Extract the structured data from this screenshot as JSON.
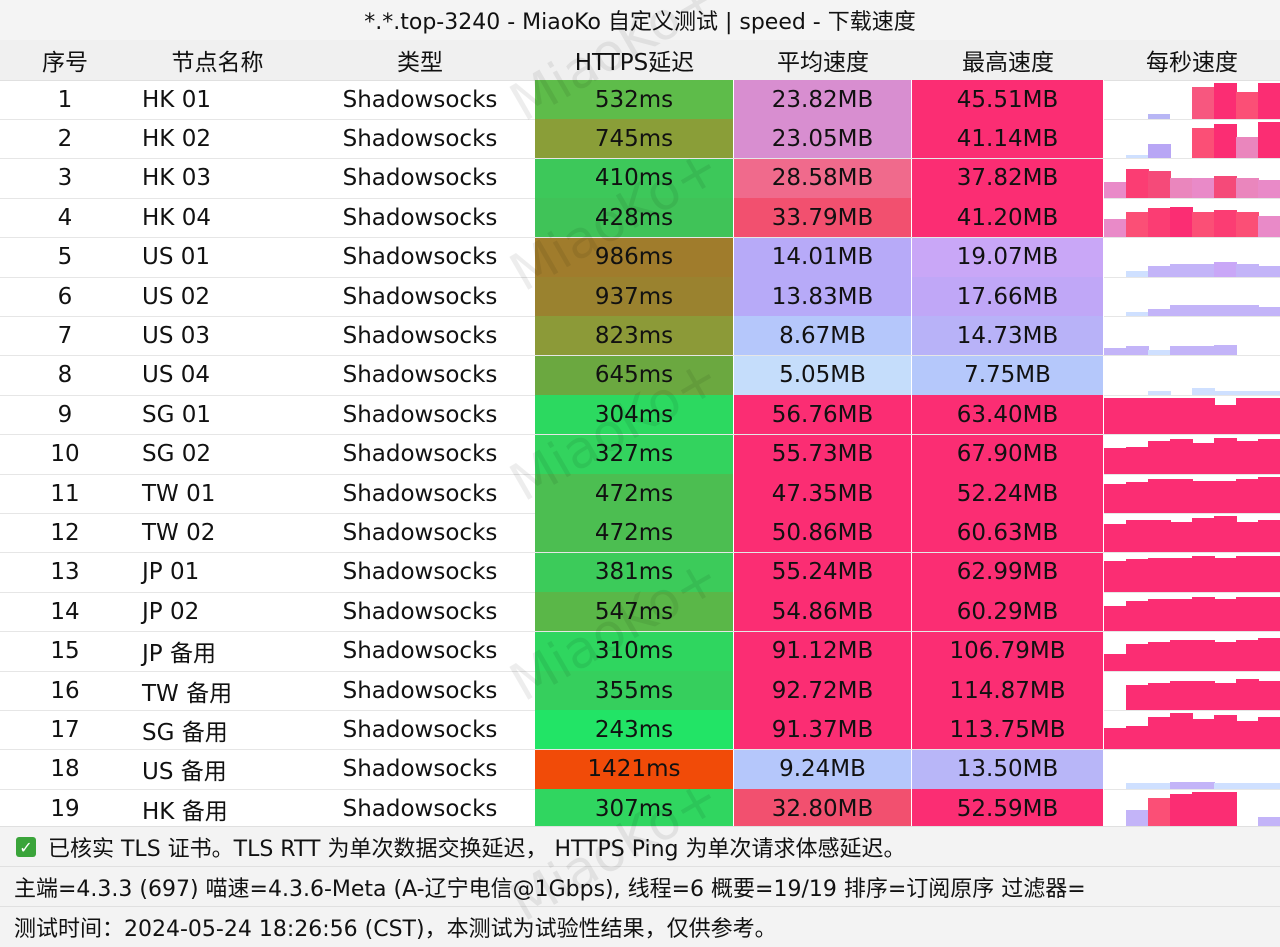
{
  "title": "*.*.top-3240 - MiaoKo 自定义测试 | speed - 下载速度",
  "headers": [
    "序号",
    "节点名称",
    "类型",
    "HTTPS延迟",
    "平均速度",
    "最高速度",
    "每秒速度"
  ],
  "rows": [
    {
      "idx": "1",
      "name": "HK 01",
      "type": "Shadowsocks",
      "delay": "532ms",
      "delay_color": "#5ebc4a",
      "avg": "23.82MB",
      "avg_color": "#d88ed0",
      "max": "45.51MB",
      "max_color": "#fb2d73",
      "spark": [
        0,
        0,
        0.15,
        0.35,
        0.9,
        1.0,
        0.75,
        1.0
      ],
      "spark_colors": [
        "#ffffff",
        "#cfe0ff",
        "#b8b6f5",
        "#ffffff",
        "#f7577f",
        "#fb2d73",
        "#fb4f76",
        "#fb2d73"
      ]
    },
    {
      "idx": "2",
      "name": "HK 02",
      "type": "Shadowsocks",
      "delay": "745ms",
      "delay_color": "#8a9e38",
      "avg": "23.05MB",
      "avg_color": "#d88ed0",
      "max": "41.14MB",
      "max_color": "#fb2d73",
      "spark": [
        0,
        0.1,
        0.4,
        0.0,
        0.85,
        0.95,
        0.6,
        1.0
      ],
      "spark_colors": [
        "#ffffff",
        "#cfe0ff",
        "#b8a6f5",
        "#ffffff",
        "#fb4f76",
        "#fb2d73",
        "#ea86bd",
        "#fb2d73"
      ]
    },
    {
      "idx": "3",
      "name": "HK 03",
      "type": "Shadowsocks",
      "delay": "410ms",
      "delay_color": "#3dc85a",
      "avg": "28.58MB",
      "avg_color": "#f06a8c",
      "max": "37.82MB",
      "max_color": "#fb2d73",
      "spark": [
        0.45,
        0.8,
        0.75,
        0.55,
        0.55,
        0.6,
        0.55,
        0.5
      ],
      "spark_colors": [
        "#e98ac8",
        "#fb3d73",
        "#f54a79",
        "#ea86bd",
        "#e98ac8",
        "#f54a79",
        "#ea86bd",
        "#e98ac8"
      ]
    },
    {
      "idx": "4",
      "name": "HK 04",
      "type": "Shadowsocks",
      "delay": "428ms",
      "delay_color": "#40c358",
      "avg": "33.79MB",
      "avg_color": "#f2506f",
      "max": "41.20MB",
      "max_color": "#fb2d73",
      "spark": [
        0.5,
        0.7,
        0.8,
        0.85,
        0.7,
        0.75,
        0.7,
        0.6
      ],
      "spark_colors": [
        "#e98ac8",
        "#fb4f76",
        "#fb3d73",
        "#fb2d73",
        "#fb4f76",
        "#fb3d73",
        "#fb4f76",
        "#e98ac8"
      ]
    },
    {
      "idx": "5",
      "name": "US 01",
      "type": "Shadowsocks",
      "delay": "986ms",
      "delay_color": "#a07c2c",
      "avg": "14.01MB",
      "avg_color": "#b7aaf8",
      "max": "19.07MB",
      "max_color": "#c9a7f7",
      "spark": [
        0.0,
        0.15,
        0.3,
        0.35,
        0.35,
        0.4,
        0.35,
        0.3
      ],
      "spark_colors": [
        "#ffffff",
        "#cfe0ff",
        "#c3b4f8",
        "#c3b4f8",
        "#c3b4f8",
        "#c9a7f7",
        "#c3b4f8",
        "#c3b4f8"
      ]
    },
    {
      "idx": "6",
      "name": "US 02",
      "type": "Shadowsocks",
      "delay": "937ms",
      "delay_color": "#9a822f",
      "avg": "13.83MB",
      "avg_color": "#b7aaf8",
      "max": "17.66MB",
      "max_color": "#c0a7f7",
      "spark": [
        0.0,
        0.1,
        0.2,
        0.3,
        0.3,
        0.3,
        0.3,
        0.25
      ],
      "spark_colors": [
        "#ffffff",
        "#cfe0ff",
        "#c3b4f8",
        "#c3b4f8",
        "#c3b4f8",
        "#c3b4f8",
        "#c3b4f8",
        "#c3b4f8"
      ]
    },
    {
      "idx": "7",
      "name": "US 03",
      "type": "Shadowsocks",
      "delay": "823ms",
      "delay_color": "#8c9a38",
      "avg": "8.67MB",
      "avg_color": "#b5c7fb",
      "max": "14.73MB",
      "max_color": "#b8b2f8",
      "spark": [
        0.2,
        0.25,
        0.15,
        0.25,
        0.25,
        0.3,
        0.0,
        0.0
      ],
      "spark_colors": [
        "#c3b4f8",
        "#c3b4f8",
        "#cfe0ff",
        "#c3b4f8",
        "#c3b4f8",
        "#c3b4f8",
        "#ffffff",
        "#ffffff"
      ]
    },
    {
      "idx": "8",
      "name": "US 04",
      "type": "Shadowsocks",
      "delay": "645ms",
      "delay_color": "#6ba840",
      "avg": "5.05MB",
      "avg_color": "#c5ddfb",
      "max": "7.75MB",
      "max_color": "#b5c8fb",
      "spark": [
        0.0,
        0.0,
        0.1,
        0.0,
        0.2,
        0.1,
        0.1,
        0.1
      ],
      "spark_colors": [
        "#ffffff",
        "#ffffff",
        "#cfe0ff",
        "#ffffff",
        "#cfe0ff",
        "#cfe0ff",
        "#cfe0ff",
        "#cfe0ff"
      ]
    },
    {
      "idx": "9",
      "name": "SG 01",
      "type": "Shadowsocks",
      "delay": "304ms",
      "delay_color": "#2cd960",
      "avg": "56.76MB",
      "avg_color": "#fb2d73",
      "max": "63.40MB",
      "max_color": "#fb2d73",
      "spark": [
        1.0,
        1.0,
        1.0,
        1.0,
        1.0,
        0.8,
        1.0,
        1.0
      ],
      "spark_colors": [
        "#fb2d73",
        "#fb2d73",
        "#fb2d73",
        "#fb2d73",
        "#fb2d73",
        "#fb2d73",
        "#fb2d73",
        "#fb2d73"
      ]
    },
    {
      "idx": "10",
      "name": "SG 02",
      "type": "Shadowsocks",
      "delay": "327ms",
      "delay_color": "#33d35e",
      "avg": "55.73MB",
      "avg_color": "#fb2d73",
      "max": "67.90MB",
      "max_color": "#fb2d73",
      "spark": [
        0.7,
        0.75,
        0.9,
        0.95,
        0.85,
        1.0,
        0.9,
        0.95
      ],
      "spark_colors": [
        "#fb2d73",
        "#fb2d73",
        "#fb2d73",
        "#fb2d73",
        "#fb2d73",
        "#fb2d73",
        "#fb2d73",
        "#fb2d73"
      ]
    },
    {
      "idx": "11",
      "name": "TW 01",
      "type": "Shadowsocks",
      "delay": "472ms",
      "delay_color": "#4cbe51",
      "avg": "47.35MB",
      "avg_color": "#fb2d73",
      "max": "52.24MB",
      "max_color": "#fb2d73",
      "spark": [
        0.8,
        0.85,
        0.95,
        0.95,
        0.9,
        0.9,
        0.95,
        1.0
      ],
      "spark_colors": [
        "#fb2d73",
        "#fb2d73",
        "#fb2d73",
        "#fb2d73",
        "#fb2d73",
        "#fb2d73",
        "#fb2d73",
        "#fb2d73"
      ]
    },
    {
      "idx": "12",
      "name": "TW 02",
      "type": "Shadowsocks",
      "delay": "472ms",
      "delay_color": "#4cbe51",
      "avg": "50.86MB",
      "avg_color": "#fb2d73",
      "max": "60.63MB",
      "max_color": "#fb2d73",
      "spark": [
        0.8,
        0.9,
        0.9,
        0.85,
        0.95,
        1.0,
        0.85,
        0.9
      ],
      "spark_colors": [
        "#fb2d73",
        "#fb2d73",
        "#fb2d73",
        "#fb2d73",
        "#fb2d73",
        "#fb2d73",
        "#fb2d73",
        "#fb2d73"
      ]
    },
    {
      "idx": "13",
      "name": "JP 01",
      "type": "Shadowsocks",
      "delay": "381ms",
      "delay_color": "#3ccb5a",
      "avg": "55.24MB",
      "avg_color": "#fb2d73",
      "max": "62.99MB",
      "max_color": "#fb2d73",
      "spark": [
        0.85,
        0.9,
        0.95,
        0.95,
        1.0,
        0.95,
        1.0,
        1.0
      ],
      "spark_colors": [
        "#fb2d73",
        "#fb2d73",
        "#fb2d73",
        "#fb2d73",
        "#fb2d73",
        "#fb2d73",
        "#fb2d73",
        "#fb2d73"
      ]
    },
    {
      "idx": "14",
      "name": "JP 02",
      "type": "Shadowsocks",
      "delay": "547ms",
      "delay_color": "#5ab748",
      "avg": "54.86MB",
      "avg_color": "#fb2d73",
      "max": "60.29MB",
      "max_color": "#fb2d73",
      "spark": [
        0.7,
        0.85,
        0.9,
        0.9,
        0.95,
        0.9,
        0.95,
        0.95
      ],
      "spark_colors": [
        "#fb2d73",
        "#fb2d73",
        "#fb2d73",
        "#fb2d73",
        "#fb2d73",
        "#fb2d73",
        "#fb2d73",
        "#fb2d73"
      ]
    },
    {
      "idx": "15",
      "name": "JP 备用",
      "type": "Shadowsocks",
      "delay": "310ms",
      "delay_color": "#2fd65f",
      "avg": "91.12MB",
      "avg_color": "#fb2d73",
      "max": "106.79MB",
      "max_color": "#fb2d73",
      "spark": [
        0.45,
        0.75,
        0.8,
        0.85,
        0.85,
        0.8,
        0.85,
        0.9
      ],
      "spark_colors": [
        "#fb2d73",
        "#fb2d73",
        "#fb2d73",
        "#fb2d73",
        "#fb2d73",
        "#fb2d73",
        "#fb2d73",
        "#fb2d73"
      ]
    },
    {
      "idx": "16",
      "name": "TW 备用",
      "type": "Shadowsocks",
      "delay": "355ms",
      "delay_color": "#36cf5d",
      "avg": "92.72MB",
      "avg_color": "#fb2d73",
      "max": "114.87MB",
      "max_color": "#fb2d73",
      "spark": [
        0.0,
        0.7,
        0.75,
        0.8,
        0.8,
        0.75,
        0.85,
        0.8
      ],
      "spark_colors": [
        "#ffffff",
        "#fb2d73",
        "#fb2d73",
        "#fb2d73",
        "#fb2d73",
        "#fb2d73",
        "#fb2d73",
        "#fb2d73"
      ]
    },
    {
      "idx": "17",
      "name": "SG 备用",
      "type": "Shadowsocks",
      "delay": "243ms",
      "delay_color": "#22e466",
      "avg": "91.37MB",
      "avg_color": "#fb2d73",
      "max": "113.75MB",
      "max_color": "#fb2d73",
      "spark": [
        0.6,
        0.65,
        0.9,
        1.0,
        0.85,
        0.95,
        0.8,
        0.9
      ],
      "spark_colors": [
        "#fb2d73",
        "#fb2d73",
        "#fb2d73",
        "#fb2d73",
        "#fb2d73",
        "#fb2d73",
        "#fb2d73",
        "#fb2d73"
      ]
    },
    {
      "idx": "18",
      "name": "US 备用",
      "type": "Shadowsocks",
      "delay": "1421ms",
      "delay_color": "#f14b08",
      "avg": "9.24MB",
      "avg_color": "#b5c7fb",
      "max": "13.50MB",
      "max_color": "#b8b6f8",
      "spark": [
        0.0,
        0.15,
        0.15,
        0.2,
        0.2,
        0.15,
        0.15,
        0.15
      ],
      "spark_colors": [
        "#ffffff",
        "#cfe0ff",
        "#cfe0ff",
        "#c3b4f8",
        "#c3b4f8",
        "#cfe0ff",
        "#cfe0ff",
        "#cfe0ff"
      ]
    },
    {
      "idx": "19",
      "name": "HK 备用",
      "type": "Shadowsocks",
      "delay": "307ms",
      "delay_color": "#30d660",
      "avg": "32.80MB",
      "avg_color": "#f2506f",
      "max": "52.59MB",
      "max_color": "#fb2d73",
      "spark": [
        0.0,
        0.5,
        0.85,
        0.95,
        1.0,
        1.0,
        0.0,
        0.3
      ],
      "spark_colors": [
        "#ffffff",
        "#c3b4f8",
        "#fb4f76",
        "#fb2d73",
        "#fb2d73",
        "#fb2d73",
        "#ffffff",
        "#c3b4f8"
      ]
    }
  ],
  "footer": {
    "tls_note": "已核实 TLS 证书。TLS RTT 为单次数据交换延迟， HTTPS Ping 为单次请求体感延迟。",
    "info": "主端=4.3.3 (697) 喵速=4.3.6-Meta (A-辽宁电信@1Gbps), 线程=6 概要=19/19 排序=订阅原序 过滤器=",
    "time": "测试时间：2024-05-24 18:26:56 (CST)，本测试为试验性结果，仅供参考。"
  },
  "watermark_text": "MiaoKo+",
  "colors": {
    "check": "#3aa43a"
  }
}
